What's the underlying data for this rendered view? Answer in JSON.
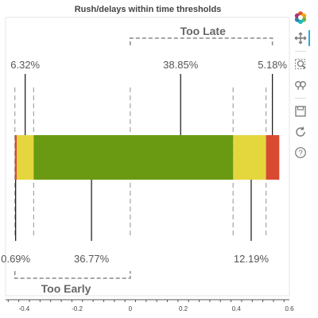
{
  "chart_data": {
    "type": "bar",
    "orientation": "horizontal",
    "stacked": true,
    "title": "Rush/delays within time thresholds",
    "xlabel": "",
    "ylabel": "",
    "xlim": [
      -0.47,
      0.6
    ],
    "x_ticks": [
      -0.4,
      -0.2,
      0,
      0.2,
      0.4,
      0.6
    ],
    "x_tick_labels": [
      "-0.4",
      "-0.2",
      "0",
      "0.2",
      "0.4",
      "0.6"
    ],
    "segments": [
      {
        "from": -0.435,
        "to": -0.428,
        "color": "#d94a33"
      },
      {
        "from": -0.428,
        "to": -0.364,
        "color": "#e3d73d"
      },
      {
        "from": -0.364,
        "to": 0.388,
        "color": "#6a9a12"
      },
      {
        "from": 0.388,
        "to": 0.512,
        "color": "#e3d73d"
      },
      {
        "from": 0.512,
        "to": 0.562,
        "color": "#d94a33"
      }
    ],
    "dashed_thresholds": [
      -0.435,
      -0.364,
      0,
      0.388,
      0.512
    ],
    "annotations_top": [
      {
        "label": "6.32%",
        "x": -0.396
      },
      {
        "label": "38.85%",
        "x": 0.19
      },
      {
        "label": "5.18%",
        "x": 0.536
      }
    ],
    "annotations_bottom": [
      {
        "label": "0.69%",
        "x": -0.432
      },
      {
        "label": "36.77%",
        "x": -0.146
      },
      {
        "label": "12.19%",
        "x": 0.456
      }
    ],
    "brackets": [
      {
        "label": "Too Late",
        "from": 0,
        "to": 0.536,
        "position": "top"
      },
      {
        "label": "Too Early",
        "from": -0.435,
        "to": 0,
        "position": "bottom"
      }
    ],
    "grid": false
  },
  "toolbar": {
    "tools": [
      {
        "name": "bokeh-logo-icon",
        "interactable": false
      },
      {
        "name": "pan-tool-icon",
        "interactable": true
      },
      {
        "name": "box-zoom-tool-icon",
        "interactable": true
      },
      {
        "name": "wheel-zoom-tool-icon",
        "interactable": true
      },
      {
        "name": "save-tool-icon",
        "interactable": true
      },
      {
        "name": "reset-tool-icon",
        "interactable": true
      },
      {
        "name": "help-tool-icon",
        "interactable": true
      }
    ]
  }
}
